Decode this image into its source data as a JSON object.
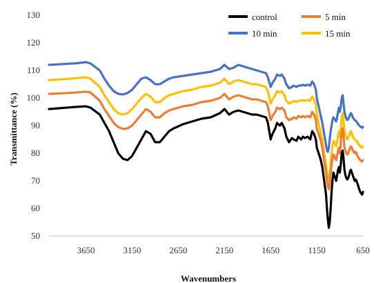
{
  "chart_data": {
    "type": "line",
    "title": "",
    "xlabel": "Wavenumbers",
    "ylabel": "Transmittance  (%)",
    "xlim": [
      4050,
      650
    ],
    "x_reversed": true,
    "ylim": [
      50,
      130
    ],
    "yticks": [
      50,
      60,
      70,
      80,
      90,
      100,
      110,
      120,
      130
    ],
    "xticks": [
      3650,
      3150,
      2650,
      2150,
      1650,
      1150,
      650
    ],
    "grid": false,
    "legend_position": "top-right",
    "series": [
      {
        "name": "control",
        "color": "#000000",
        "x": [
          4050,
          3900,
          3750,
          3650,
          3600,
          3500,
          3450,
          3400,
          3350,
          3300,
          3250,
          3200,
          3150,
          3100,
          3050,
          3000,
          2950,
          2900,
          2850,
          2800,
          2750,
          2700,
          2600,
          2500,
          2400,
          2300,
          2200,
          2150,
          2100,
          2050,
          2000,
          1950,
          1900,
          1850,
          1800,
          1750,
          1700,
          1680,
          1650,
          1630,
          1600,
          1580,
          1550,
          1530,
          1500,
          1480,
          1450,
          1420,
          1400,
          1370,
          1350,
          1320,
          1300,
          1280,
          1250,
          1220,
          1200,
          1180,
          1160,
          1150,
          1130,
          1110,
          1090,
          1070,
          1050,
          1040,
          1030,
          1020,
          1010,
          1000,
          990,
          980,
          970,
          960,
          950,
          940,
          930,
          920,
          910,
          900,
          890,
          880,
          870,
          860,
          850,
          840,
          830,
          820,
          810,
          800,
          790,
          780,
          770,
          760,
          750,
          740,
          730,
          720,
          710,
          700,
          690,
          680,
          670,
          660,
          650
        ],
        "y": [
          96,
          96.4,
          96.8,
          97,
          96.5,
          94,
          91,
          88,
          84,
          80,
          78,
          77.5,
          79,
          82,
          85,
          88,
          87,
          84,
          84,
          86,
          88,
          89,
          90.5,
          91.5,
          92.5,
          93,
          94.5,
          96,
          94,
          95,
          95.5,
          95,
          94.5,
          94,
          94,
          93.5,
          93,
          91,
          85,
          87,
          89,
          91,
          90,
          91,
          89,
          86,
          84,
          85.5,
          85,
          84.5,
          86,
          85,
          86,
          85.5,
          86,
          85,
          88,
          87,
          85,
          82,
          80,
          78,
          75,
          70,
          65,
          60,
          56,
          53,
          55,
          60,
          66,
          70,
          73,
          72,
          71,
          70,
          72,
          74,
          75,
          73,
          76,
          80,
          81,
          78,
          74,
          72,
          71,
          70.5,
          71,
          72,
          73.5,
          74,
          73,
          72,
          71,
          70,
          70.5,
          70,
          69,
          68,
          67,
          66,
          65.5,
          65,
          66
        ],
        "legend_row": 0,
        "legend_col": 0
      },
      {
        "name": "5 min",
        "color": "#ED7D31",
        "x": [
          4050,
          3900,
          3750,
          3650,
          3600,
          3500,
          3450,
          3400,
          3350,
          3300,
          3250,
          3200,
          3150,
          3100,
          3050,
          3000,
          2950,
          2900,
          2850,
          2800,
          2750,
          2700,
          2600,
          2500,
          2400,
          2300,
          2200,
          2150,
          2100,
          2050,
          2000,
          1950,
          1900,
          1850,
          1800,
          1750,
          1700,
          1680,
          1650,
          1630,
          1600,
          1580,
          1550,
          1530,
          1500,
          1480,
          1450,
          1420,
          1400,
          1370,
          1350,
          1320,
          1300,
          1280,
          1250,
          1220,
          1200,
          1180,
          1160,
          1150,
          1130,
          1110,
          1090,
          1070,
          1050,
          1040,
          1030,
          1020,
          1010,
          1000,
          990,
          980,
          970,
          960,
          950,
          940,
          930,
          920,
          910,
          900,
          890,
          880,
          870,
          860,
          850,
          840,
          830,
          820,
          810,
          800,
          790,
          780,
          770,
          760,
          750,
          740,
          730,
          720,
          710,
          700,
          690,
          680,
          670,
          660,
          650
        ],
        "y": [
          101.5,
          101.7,
          102,
          102.3,
          102,
          99,
          96,
          93.5,
          91,
          89.5,
          88.8,
          89,
          90,
          92,
          94,
          96,
          95,
          93,
          93,
          94.5,
          95.5,
          96,
          97,
          97.5,
          98.5,
          99,
          100,
          101.5,
          99.5,
          100.5,
          101,
          100.5,
          100,
          99.5,
          99.5,
          99,
          98.5,
          97,
          92,
          93.5,
          95,
          96.5,
          96,
          96.5,
          95.5,
          93,
          92,
          92.5,
          93,
          92.5,
          93.5,
          93,
          93.5,
          93,
          93.5,
          93,
          95,
          94,
          92,
          89,
          87,
          85,
          82,
          77,
          73,
          70,
          68,
          67,
          69,
          73,
          76,
          78,
          79.5,
          79,
          78,
          77.5,
          79,
          81,
          82,
          80,
          84,
          88,
          89,
          86,
          82,
          81,
          80,
          79.5,
          80,
          81,
          82,
          82.5,
          82,
          81,
          80.5,
          80,
          80.5,
          80,
          79,
          78.5,
          78,
          77.5,
          77.2,
          77,
          77.5
        ],
        "legend_row": 0,
        "legend_col": 1
      },
      {
        "name": "10 min",
        "color": "#4472C4",
        "x": [
          4050,
          3900,
          3750,
          3650,
          3600,
          3500,
          3450,
          3400,
          3350,
          3300,
          3250,
          3200,
          3150,
          3100,
          3050,
          3000,
          2950,
          2900,
          2850,
          2800,
          2750,
          2700,
          2600,
          2500,
          2400,
          2300,
          2200,
          2150,
          2100,
          2050,
          2000,
          1950,
          1900,
          1850,
          1800,
          1750,
          1700,
          1680,
          1650,
          1630,
          1600,
          1580,
          1550,
          1530,
          1500,
          1480,
          1450,
          1420,
          1400,
          1370,
          1350,
          1320,
          1300,
          1280,
          1250,
          1220,
          1200,
          1180,
          1160,
          1150,
          1130,
          1110,
          1090,
          1070,
          1050,
          1040,
          1030,
          1020,
          1010,
          1000,
          990,
          980,
          970,
          960,
          950,
          940,
          930,
          920,
          910,
          900,
          890,
          880,
          870,
          860,
          850,
          840,
          830,
          820,
          810,
          800,
          790,
          780,
          770,
          760,
          750,
          740,
          730,
          720,
          710,
          700,
          690,
          680,
          670,
          660,
          650
        ],
        "y": [
          112,
          112.3,
          112.6,
          113,
          112.5,
          110,
          107,
          104.5,
          102.5,
          101.5,
          101.3,
          101.8,
          103,
          105,
          107,
          107.5,
          106.5,
          105,
          105,
          106,
          107,
          107.5,
          108,
          108.5,
          109,
          109.5,
          110.5,
          112,
          110.5,
          111,
          112,
          111.5,
          111,
          110.5,
          110,
          109.5,
          109,
          107.5,
          104,
          105.5,
          107,
          108.5,
          108,
          108.5,
          107,
          105,
          103.5,
          104,
          104.5,
          104,
          104.5,
          104.5,
          104.8,
          104.5,
          104.8,
          104.5,
          106,
          105,
          103,
          100,
          97,
          94,
          91,
          87,
          83,
          81,
          80.5,
          82,
          85,
          88,
          90,
          92,
          93,
          92.5,
          92,
          91.5,
          93,
          95,
          96.5,
          95,
          97,
          100,
          101,
          98,
          95,
          93.5,
          92.5,
          92,
          92.5,
          93,
          94,
          94.5,
          94,
          93,
          92.5,
          92,
          91.8,
          91.5,
          91,
          90.5,
          90,
          89.8,
          89.5,
          89.2,
          89.5
        ],
        "legend_row": 1,
        "legend_col": 0
      },
      {
        "name": "15 min",
        "color": "#FFC000",
        "x": [
          4050,
          3900,
          3750,
          3650,
          3600,
          3500,
          3450,
          3400,
          3350,
          3300,
          3250,
          3200,
          3150,
          3100,
          3050,
          3000,
          2950,
          2900,
          2850,
          2800,
          2750,
          2700,
          2600,
          2500,
          2400,
          2300,
          2200,
          2150,
          2100,
          2050,
          2000,
          1950,
          1900,
          1850,
          1800,
          1750,
          1700,
          1680,
          1650,
          1630,
          1600,
          1580,
          1550,
          1530,
          1500,
          1480,
          1450,
          1420,
          1400,
          1370,
          1350,
          1320,
          1300,
          1280,
          1250,
          1220,
          1200,
          1180,
          1160,
          1150,
          1130,
          1110,
          1090,
          1070,
          1050,
          1040,
          1030,
          1020,
          1010,
          1000,
          990,
          980,
          970,
          960,
          950,
          940,
          930,
          920,
          910,
          900,
          890,
          880,
          870,
          860,
          850,
          840,
          830,
          820,
          810,
          800,
          790,
          780,
          770,
          760,
          750,
          740,
          730,
          720,
          710,
          700,
          690,
          680,
          670,
          660,
          650
        ],
        "y": [
          106.5,
          106.8,
          107.2,
          107.5,
          107,
          104,
          101,
          98.5,
          96,
          94.5,
          94,
          94.5,
          96,
          98,
          100,
          101.5,
          100.5,
          98.5,
          98.5,
          100,
          101,
          101.5,
          102.5,
          103,
          104,
          104.5,
          105.5,
          107,
          105,
          106,
          106.5,
          106,
          105.5,
          105,
          105,
          104.5,
          104,
          102.5,
          98,
          99.5,
          101,
          102.5,
          102,
          102.5,
          101,
          99,
          98,
          98.5,
          99,
          98.5,
          99,
          99,
          99.3,
          99,
          99.3,
          99,
          100.5,
          99.5,
          97.5,
          94,
          91,
          88,
          85,
          80,
          76,
          73,
          71,
          70,
          72,
          76,
          80,
          83,
          84.5,
          84,
          83,
          82.5,
          84,
          86.5,
          88,
          86,
          89,
          93,
          94.5,
          91.5,
          88,
          86.5,
          85.5,
          85,
          85.5,
          86.5,
          87.5,
          88,
          87,
          86,
          85.5,
          85,
          84.8,
          84.5,
          84,
          83.5,
          83,
          82.5,
          82.2,
          82,
          82.5
        ],
        "legend_row": 1,
        "legend_col": 1
      }
    ]
  }
}
